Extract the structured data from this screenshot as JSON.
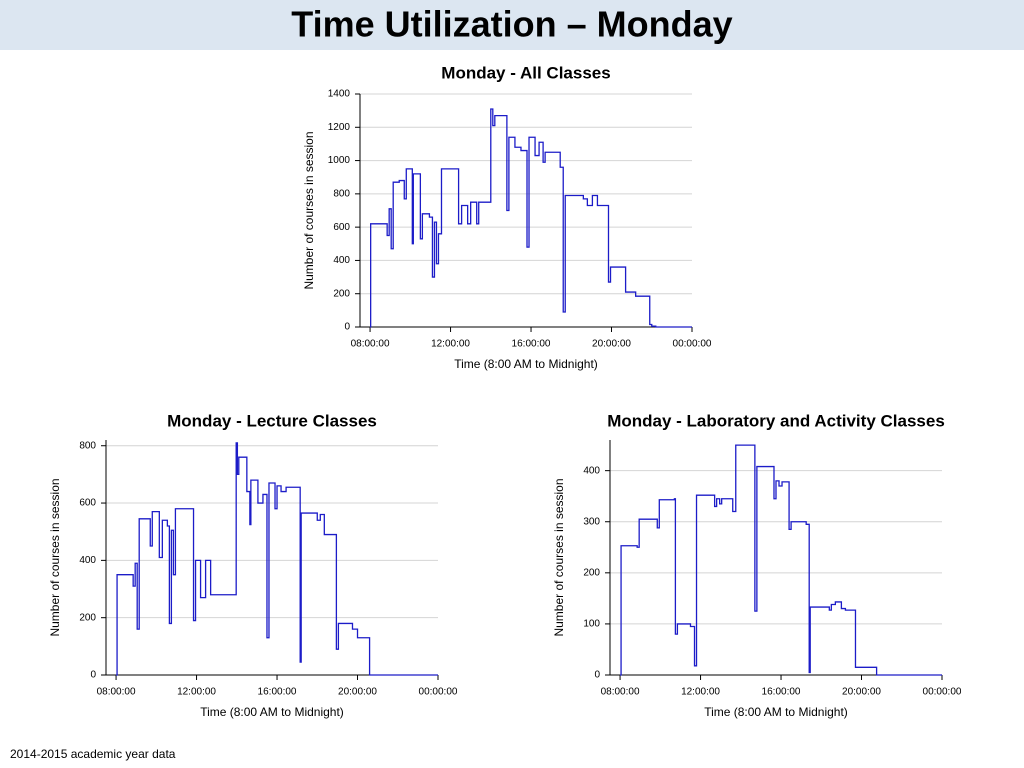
{
  "header": {
    "title": "Time Utilization – Monday"
  },
  "footer": "2014-2015 academic year data",
  "chart_data": [
    {
      "type": "line",
      "step": true,
      "title": "Monday - All Classes",
      "x_label": "Time (8:00 AM to Midnight)",
      "y_label": "Number of courses in session",
      "xlim": [
        7.5,
        24
      ],
      "ylim": [
        0,
        1400
      ],
      "grid": true,
      "xticks": [
        {
          "value": 8,
          "label": "08:00:00"
        },
        {
          "value": 12,
          "label": "12:00:00"
        },
        {
          "value": 16,
          "label": "16:00:00"
        },
        {
          "value": 20,
          "label": "20:00:00"
        },
        {
          "value": 24,
          "label": "00:00:00"
        }
      ],
      "yticks": [
        0,
        200,
        400,
        600,
        800,
        1000,
        1200,
        1400
      ],
      "x": [
        8.0,
        8.03,
        8.85,
        8.95,
        9.05,
        9.15,
        9.45,
        9.7,
        9.8,
        10.1,
        10.15,
        10.5,
        10.6,
        10.95,
        11.1,
        11.2,
        11.3,
        11.4,
        11.55,
        12.4,
        12.55,
        12.85,
        13.0,
        13.3,
        13.4,
        14.0,
        14.1,
        14.2,
        14.8,
        14.9,
        15.2,
        15.5,
        15.8,
        15.9,
        16.2,
        16.4,
        16.6,
        16.7,
        17.45,
        17.6,
        17.7,
        18.6,
        18.8,
        19.05,
        19.3,
        19.85,
        19.95,
        20.7,
        21.2,
        21.9,
        22.0,
        22.2,
        24.0
      ],
      "series": [
        {
          "color": "#1c1cc8",
          "values": [
            0,
            620,
            550,
            710,
            470,
            870,
            880,
            770,
            950,
            500,
            920,
            530,
            680,
            660,
            300,
            630,
            380,
            560,
            950,
            620,
            730,
            620,
            750,
            620,
            750,
            1310,
            1210,
            1270,
            700,
            1140,
            1080,
            1060,
            480,
            1140,
            1030,
            1110,
            990,
            1050,
            960,
            90,
            790,
            770,
            730,
            790,
            730,
            270,
            360,
            210,
            185,
            15,
            5,
            0,
            0
          ]
        }
      ]
    },
    {
      "type": "line",
      "step": true,
      "title": "Monday - Lecture Classes",
      "x_label": "Time (8:00 AM to Midnight)",
      "y_label": "Number of courses in session",
      "xlim": [
        7.5,
        24
      ],
      "ylim": [
        0,
        820
      ],
      "grid": true,
      "xticks": [
        {
          "value": 8,
          "label": "08:00:00"
        },
        {
          "value": 12,
          "label": "12:00:00"
        },
        {
          "value": 16,
          "label": "16:00:00"
        },
        {
          "value": 20,
          "label": "20:00:00"
        },
        {
          "value": 24,
          "label": "00:00:00"
        }
      ],
      "yticks": [
        0,
        200,
        400,
        600,
        800
      ],
      "x": [
        8.0,
        8.05,
        8.85,
        8.95,
        9.05,
        9.15,
        9.7,
        9.8,
        10.15,
        10.3,
        10.55,
        10.65,
        10.75,
        10.85,
        10.95,
        11.85,
        11.95,
        12.2,
        12.45,
        12.7,
        13.97,
        14.03,
        14.1,
        14.5,
        14.65,
        14.7,
        15.05,
        15.3,
        15.5,
        15.6,
        15.9,
        16.0,
        16.2,
        16.45,
        17.15,
        17.2,
        18.0,
        18.15,
        18.35,
        18.95,
        19.05,
        19.75,
        20.0,
        20.6,
        24.0
      ],
      "series": [
        {
          "color": "#1c1cc8",
          "values": [
            0,
            350,
            310,
            390,
            160,
            545,
            450,
            570,
            410,
            540,
            520,
            180,
            505,
            350,
            580,
            190,
            400,
            270,
            400,
            280,
            810,
            700,
            760,
            640,
            525,
            680,
            600,
            630,
            130,
            670,
            580,
            660,
            640,
            655,
            45,
            565,
            540,
            560,
            490,
            90,
            180,
            160,
            130,
            0,
            0
          ]
        }
      ]
    },
    {
      "type": "line",
      "step": true,
      "title": "Monday - Laboratory and Activity Classes",
      "x_label": "Time (8:00 AM to Midnight)",
      "y_label": "Number of courses in session",
      "xlim": [
        7.5,
        24
      ],
      "ylim": [
        0,
        460
      ],
      "grid": true,
      "xticks": [
        {
          "value": 8,
          "label": "08:00:00"
        },
        {
          "value": 12,
          "label": "12:00:00"
        },
        {
          "value": 16,
          "label": "16:00:00"
        },
        {
          "value": 20,
          "label": "20:00:00"
        },
        {
          "value": 24,
          "label": "00:00:00"
        }
      ],
      "yticks": [
        0,
        100,
        200,
        300,
        400
      ],
      "x": [
        8.0,
        8.05,
        8.85,
        8.95,
        9.85,
        9.95,
        10.7,
        10.75,
        10.85,
        11.5,
        11.7,
        11.8,
        12.7,
        12.8,
        12.95,
        13.05,
        13.6,
        13.75,
        14.7,
        14.8,
        15.65,
        15.75,
        15.9,
        16.05,
        16.4,
        16.5,
        17.25,
        17.4,
        17.45,
        18.4,
        18.5,
        18.7,
        19.0,
        19.2,
        19.7,
        20.75,
        24.0
      ],
      "series": [
        {
          "color": "#1c1cc8",
          "values": [
            0,
            253,
            250,
            305,
            288,
            343,
            345,
            80,
            100,
            95,
            18,
            352,
            330,
            345,
            335,
            345,
            320,
            450,
            125,
            408,
            345,
            380,
            370,
            378,
            285,
            300,
            295,
            5,
            133,
            127,
            138,
            143,
            130,
            127,
            15,
            0,
            0
          ]
        }
      ]
    }
  ]
}
